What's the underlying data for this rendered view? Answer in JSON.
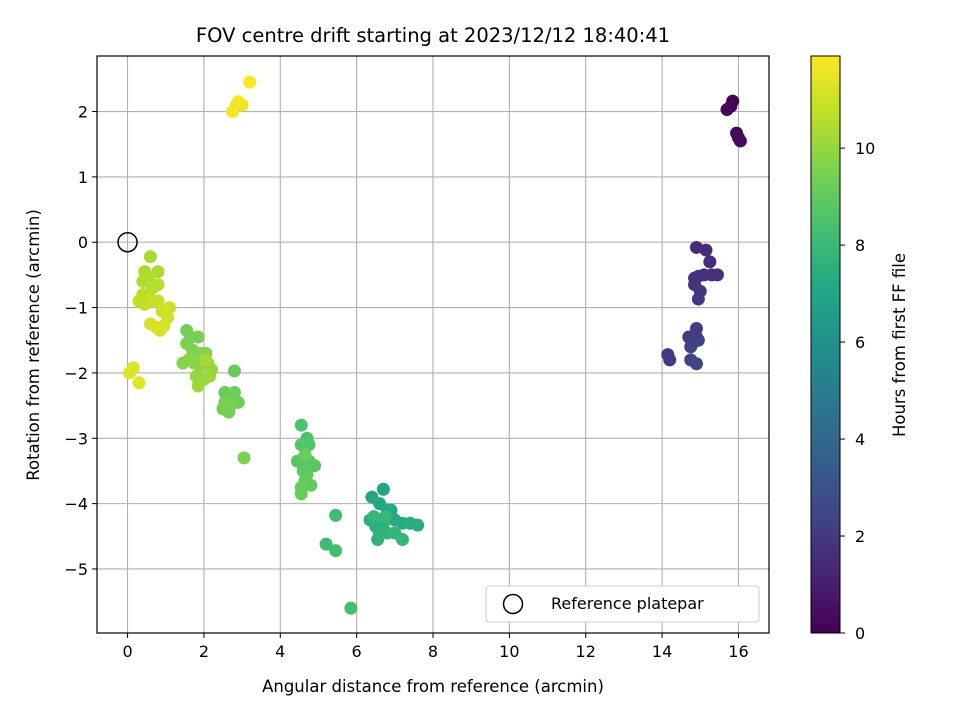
{
  "chart_data": {
    "type": "scatter",
    "title": "FOV centre drift starting at 2023/12/12 18:40:41",
    "xlabel": "Angular distance from reference (arcmin)",
    "ylabel": "Rotation from reference (arcmin)",
    "xlim": [
      -0.8,
      16.8
    ],
    "ylim": [
      -5.98,
      2.85
    ],
    "xticks": [
      0,
      2,
      4,
      6,
      8,
      10,
      12,
      14,
      16
    ],
    "yticks": [
      -5,
      -4,
      -3,
      -2,
      -1,
      0,
      1,
      2
    ],
    "grid": true,
    "legend": {
      "placement": "lower-right",
      "entries": [
        "Reference platepar"
      ]
    },
    "reference_point": {
      "x": 0,
      "y": 0
    },
    "colorbar": {
      "label": "Hours from first FF file",
      "colormap": "viridis",
      "range": [
        0,
        11.9
      ],
      "ticks": [
        0,
        2,
        4,
        6,
        8,
        10
      ]
    },
    "points": [
      {
        "x": 15.85,
        "y": 2.16,
        "h": 0.05
      },
      {
        "x": 15.8,
        "y": 2.08,
        "h": 0.1
      },
      {
        "x": 15.7,
        "y": 2.03,
        "h": 0.15
      },
      {
        "x": 15.95,
        "y": 1.67,
        "h": 0.2
      },
      {
        "x": 16.05,
        "y": 1.55,
        "h": 0.25
      },
      {
        "x": 16.0,
        "y": 1.6,
        "h": 0.3
      },
      {
        "x": 14.9,
        "y": -0.08,
        "h": 1.4
      },
      {
        "x": 15.15,
        "y": -0.12,
        "h": 1.45
      },
      {
        "x": 15.25,
        "y": -0.3,
        "h": 1.5
      },
      {
        "x": 15.1,
        "y": -0.5,
        "h": 1.55
      },
      {
        "x": 15.3,
        "y": -0.5,
        "h": 1.6
      },
      {
        "x": 15.45,
        "y": -0.5,
        "h": 1.65
      },
      {
        "x": 14.85,
        "y": -0.55,
        "h": 1.7
      },
      {
        "x": 14.95,
        "y": -0.52,
        "h": 1.75
      },
      {
        "x": 14.85,
        "y": -0.65,
        "h": 1.8
      },
      {
        "x": 15.0,
        "y": -0.75,
        "h": 1.85
      },
      {
        "x": 14.95,
        "y": -0.87,
        "h": 1.9
      },
      {
        "x": 14.15,
        "y": -1.72,
        "h": 1.95
      },
      {
        "x": 14.2,
        "y": -1.8,
        "h": 2.0
      },
      {
        "x": 14.7,
        "y": -1.45,
        "h": 2.05
      },
      {
        "x": 14.9,
        "y": -1.32,
        "h": 2.1
      },
      {
        "x": 14.9,
        "y": -1.45,
        "h": 2.15
      },
      {
        "x": 14.95,
        "y": -1.5,
        "h": 2.2
      },
      {
        "x": 14.75,
        "y": -1.6,
        "h": 2.25
      },
      {
        "x": 14.8,
        "y": -1.55,
        "h": 2.3
      },
      {
        "x": 14.75,
        "y": -1.8,
        "h": 2.35
      },
      {
        "x": 14.9,
        "y": -1.86,
        "h": 2.4
      },
      {
        "x": 6.7,
        "y": -3.78,
        "h": 7.0
      },
      {
        "x": 6.4,
        "y": -3.9,
        "h": 7.05
      },
      {
        "x": 6.6,
        "y": -4.0,
        "h": 7.1
      },
      {
        "x": 6.8,
        "y": -4.1,
        "h": 7.15
      },
      {
        "x": 6.9,
        "y": -4.1,
        "h": 7.2
      },
      {
        "x": 7.0,
        "y": -4.25,
        "h": 7.25
      },
      {
        "x": 7.2,
        "y": -4.3,
        "h": 7.3
      },
      {
        "x": 7.4,
        "y": -4.3,
        "h": 7.35
      },
      {
        "x": 7.6,
        "y": -4.33,
        "h": 7.4
      },
      {
        "x": 6.35,
        "y": -4.25,
        "h": 7.45
      },
      {
        "x": 6.5,
        "y": -4.35,
        "h": 7.5
      },
      {
        "x": 6.6,
        "y": -4.45,
        "h": 7.55
      },
      {
        "x": 6.7,
        "y": -4.3,
        "h": 7.6
      },
      {
        "x": 6.55,
        "y": -4.55,
        "h": 7.65
      },
      {
        "x": 6.8,
        "y": -4.45,
        "h": 7.7
      },
      {
        "x": 7.0,
        "y": -4.45,
        "h": 7.75
      },
      {
        "x": 7.2,
        "y": -4.55,
        "h": 7.8
      },
      {
        "x": 6.45,
        "y": -4.2,
        "h": 7.85
      },
      {
        "x": 6.75,
        "y": -4.2,
        "h": 7.9
      },
      {
        "x": 5.45,
        "y": -4.18,
        "h": 8.15
      },
      {
        "x": 5.2,
        "y": -4.62,
        "h": 8.2
      },
      {
        "x": 5.45,
        "y": -4.72,
        "h": 8.25
      },
      {
        "x": 5.85,
        "y": -5.6,
        "h": 8.3
      },
      {
        "x": 4.55,
        "y": -2.8,
        "h": 8.5
      },
      {
        "x": 4.7,
        "y": -3.0,
        "h": 8.55
      },
      {
        "x": 4.75,
        "y": -3.1,
        "h": 8.6
      },
      {
        "x": 4.55,
        "y": -3.1,
        "h": 8.65
      },
      {
        "x": 4.45,
        "y": -3.35,
        "h": 8.7
      },
      {
        "x": 4.6,
        "y": -3.4,
        "h": 8.75
      },
      {
        "x": 4.75,
        "y": -3.35,
        "h": 8.8
      },
      {
        "x": 4.9,
        "y": -3.42,
        "h": 8.85
      },
      {
        "x": 4.6,
        "y": -3.5,
        "h": 8.9
      },
      {
        "x": 4.7,
        "y": -3.55,
        "h": 8.95
      },
      {
        "x": 4.65,
        "y": -3.65,
        "h": 9.0
      },
      {
        "x": 4.8,
        "y": -3.72,
        "h": 9.05
      },
      {
        "x": 4.55,
        "y": -3.75,
        "h": 9.1
      },
      {
        "x": 4.55,
        "y": -3.85,
        "h": 9.15
      },
      {
        "x": 4.65,
        "y": -3.25,
        "h": 9.2
      },
      {
        "x": 2.8,
        "y": -1.97,
        "h": 9.1
      },
      {
        "x": 2.55,
        "y": -2.3,
        "h": 9.15
      },
      {
        "x": 2.7,
        "y": -2.35,
        "h": 9.2
      },
      {
        "x": 2.8,
        "y": -2.3,
        "h": 9.25
      },
      {
        "x": 2.9,
        "y": -2.45,
        "h": 9.3
      },
      {
        "x": 2.5,
        "y": -2.55,
        "h": 9.35
      },
      {
        "x": 2.65,
        "y": -2.6,
        "h": 9.4
      },
      {
        "x": 2.7,
        "y": -2.5,
        "h": 9.45
      },
      {
        "x": 2.55,
        "y": -2.45,
        "h": 9.5
      },
      {
        "x": 3.05,
        "y": -3.3,
        "h": 9.55
      },
      {
        "x": 1.55,
        "y": -1.35,
        "h": 9.35
      },
      {
        "x": 1.65,
        "y": -1.45,
        "h": 9.4
      },
      {
        "x": 1.85,
        "y": -1.45,
        "h": 9.45
      },
      {
        "x": 1.55,
        "y": -1.55,
        "h": 9.5
      },
      {
        "x": 1.7,
        "y": -1.65,
        "h": 9.55
      },
      {
        "x": 1.9,
        "y": -1.7,
        "h": 9.6
      },
      {
        "x": 2.05,
        "y": -1.7,
        "h": 9.65
      },
      {
        "x": 1.45,
        "y": -1.85,
        "h": 9.7
      },
      {
        "x": 1.6,
        "y": -1.8,
        "h": 9.75
      },
      {
        "x": 1.75,
        "y": -1.85,
        "h": 9.8
      },
      {
        "x": 1.9,
        "y": -1.9,
        "h": 9.85
      },
      {
        "x": 2.1,
        "y": -1.85,
        "h": 9.9
      },
      {
        "x": 2.2,
        "y": -1.95,
        "h": 9.95
      },
      {
        "x": 1.8,
        "y": -2.05,
        "h": 10.0
      },
      {
        "x": 2.0,
        "y": -2.1,
        "h": 10.05
      },
      {
        "x": 2.15,
        "y": -2.05,
        "h": 10.1
      },
      {
        "x": 1.85,
        "y": -2.2,
        "h": 10.15
      },
      {
        "x": 2.05,
        "y": -1.8,
        "h": 10.2
      },
      {
        "x": 0.6,
        "y": -0.22,
        "h": 10.3
      },
      {
        "x": 0.45,
        "y": -0.45,
        "h": 10.35
      },
      {
        "x": 0.8,
        "y": -0.45,
        "h": 10.4
      },
      {
        "x": 0.4,
        "y": -0.6,
        "h": 10.45
      },
      {
        "x": 0.55,
        "y": -0.55,
        "h": 10.5
      },
      {
        "x": 0.65,
        "y": -0.7,
        "h": 10.55
      },
      {
        "x": 0.8,
        "y": -0.65,
        "h": 10.6
      },
      {
        "x": 0.4,
        "y": -0.8,
        "h": 10.65
      },
      {
        "x": 0.55,
        "y": -0.82,
        "h": 10.7
      },
      {
        "x": 0.3,
        "y": -0.9,
        "h": 10.75
      },
      {
        "x": 0.45,
        "y": -0.95,
        "h": 10.8
      },
      {
        "x": 0.6,
        "y": -0.9,
        "h": 10.85
      },
      {
        "x": 0.8,
        "y": -0.9,
        "h": 10.9
      },
      {
        "x": 0.9,
        "y": -1.05,
        "h": 10.95
      },
      {
        "x": 1.1,
        "y": -1.0,
        "h": 11.0
      },
      {
        "x": 1.05,
        "y": -1.15,
        "h": 11.05
      },
      {
        "x": 0.95,
        "y": -1.28,
        "h": 11.1
      },
      {
        "x": 0.6,
        "y": -1.25,
        "h": 11.15
      },
      {
        "x": 0.75,
        "y": -1.3,
        "h": 11.2
      },
      {
        "x": 0.85,
        "y": -1.35,
        "h": 11.25
      },
      {
        "x": 0.15,
        "y": -1.92,
        "h": 11.3
      },
      {
        "x": 0.05,
        "y": -2.0,
        "h": 11.35
      },
      {
        "x": 0.3,
        "y": -2.15,
        "h": 11.4
      },
      {
        "x": 2.85,
        "y": 2.1,
        "h": 11.6
      },
      {
        "x": 3.0,
        "y": 2.1,
        "h": 11.65
      },
      {
        "x": 2.75,
        "y": 2.0,
        "h": 11.7
      },
      {
        "x": 2.9,
        "y": 2.15,
        "h": 11.75
      },
      {
        "x": 3.2,
        "y": 2.45,
        "h": 11.85
      }
    ]
  }
}
